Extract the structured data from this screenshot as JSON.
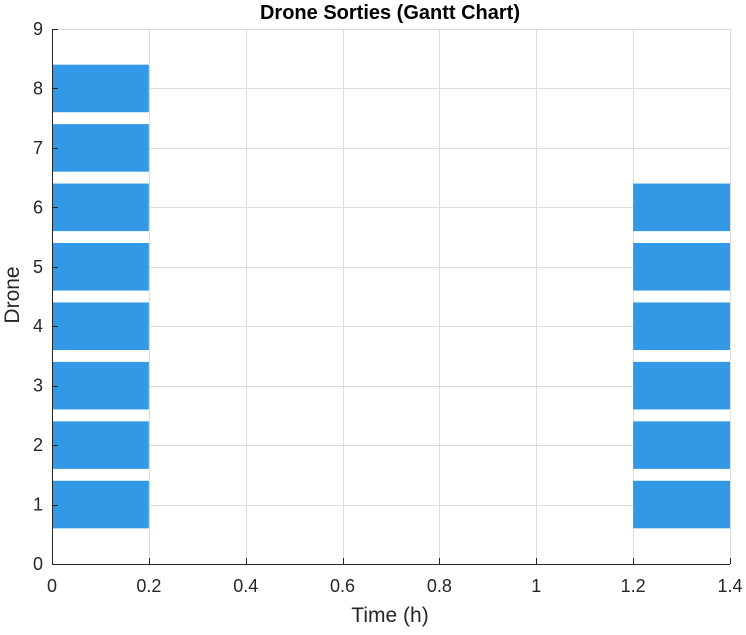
{
  "chart_data": {
    "type": "gantt",
    "title": "Drone Sorties (Gantt Chart)",
    "xlabel": "Time (h)",
    "ylabel": "Drone",
    "xlim": [
      0,
      1.4
    ],
    "ylim": [
      0,
      9
    ],
    "xticks": [
      0,
      0.2,
      0.4,
      0.6,
      0.8,
      1,
      1.2,
      1.4
    ],
    "xtick_labels": [
      "0",
      "0.2",
      "0.4",
      "0.6",
      "0.8",
      "1",
      "1.2",
      "1.4"
    ],
    "yticks": [
      0,
      1,
      2,
      3,
      4,
      5,
      6,
      7,
      8,
      9
    ],
    "ytick_labels": [
      "0",
      "1",
      "2",
      "3",
      "4",
      "5",
      "6",
      "7",
      "8",
      "9"
    ],
    "grid": true,
    "bar_color": "#3399e6",
    "bar_height": 0.8,
    "sorties": [
      {
        "drone": 1,
        "start": 0,
        "end": 0.2
      },
      {
        "drone": 2,
        "start": 0,
        "end": 0.2
      },
      {
        "drone": 3,
        "start": 0,
        "end": 0.2
      },
      {
        "drone": 4,
        "start": 0,
        "end": 0.2
      },
      {
        "drone": 5,
        "start": 0,
        "end": 0.2
      },
      {
        "drone": 6,
        "start": 0,
        "end": 0.2
      },
      {
        "drone": 7,
        "start": 0,
        "end": 0.2
      },
      {
        "drone": 8,
        "start": 0,
        "end": 0.2
      },
      {
        "drone": 1,
        "start": 1.2,
        "end": 1.4
      },
      {
        "drone": 2,
        "start": 1.2,
        "end": 1.4
      },
      {
        "drone": 3,
        "start": 1.2,
        "end": 1.4
      },
      {
        "drone": 4,
        "start": 1.2,
        "end": 1.4
      },
      {
        "drone": 5,
        "start": 1.2,
        "end": 1.4
      },
      {
        "drone": 6,
        "start": 1.2,
        "end": 1.4
      }
    ]
  }
}
